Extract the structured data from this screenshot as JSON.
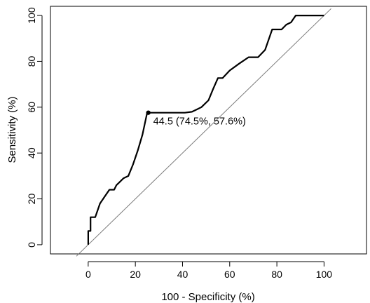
{
  "chart_data": {
    "type": "line",
    "xlabel": "100 - Specificity (%)",
    "ylabel": "Sensitivity (%)",
    "xlim": [
      -16,
      118
    ],
    "ylim": [
      -4,
      104
    ],
    "x_ticks": [
      0,
      20,
      40,
      60,
      80,
      100
    ],
    "y_ticks": [
      0,
      20,
      40,
      60,
      80,
      100
    ],
    "grid": false,
    "series": [
      {
        "x": [
          0,
          0,
          1,
          1,
          3,
          5,
          7,
          9,
          11,
          12,
          13,
          15,
          17,
          19,
          21,
          23,
          25,
          28,
          31,
          34,
          37,
          41,
          44,
          46,
          48,
          51,
          53,
          55,
          57,
          60,
          64,
          68,
          70,
          72,
          75,
          78,
          80,
          82,
          84,
          86,
          88,
          92,
          96,
          100
        ],
        "y": [
          0,
          6,
          6,
          12,
          12,
          18,
          21,
          24,
          24,
          26,
          27,
          29,
          30,
          35,
          41,
          48,
          57.6,
          57.6,
          57.6,
          57.6,
          57.6,
          57.6,
          58,
          59,
          60,
          63,
          68,
          72.7,
          72.7,
          76,
          79,
          81.8,
          81.8,
          81.8,
          85,
          93.9,
          93.9,
          93.9,
          96,
          97,
          100,
          100,
          100,
          100
        ]
      },
      {
        "x": [
          -5,
          103
        ],
        "y": [
          -5,
          103
        ]
      }
    ],
    "annotations": [
      {
        "text": "44.5 (74.5%, 57.6%)",
        "x": 25.5,
        "y": 57.6
      }
    ]
  }
}
